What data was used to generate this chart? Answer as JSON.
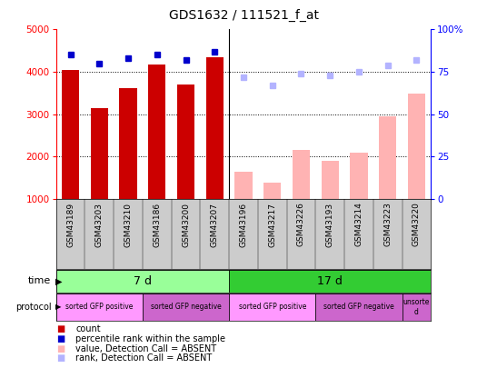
{
  "title": "GDS1632 / 111521_f_at",
  "samples": [
    "GSM43189",
    "GSM43203",
    "GSM43210",
    "GSM43186",
    "GSM43200",
    "GSM43207",
    "GSM43196",
    "GSM43217",
    "GSM43226",
    "GSM43193",
    "GSM43214",
    "GSM43223",
    "GSM43220"
  ],
  "count_values": [
    4050,
    3150,
    3620,
    4180,
    3700,
    4350,
    null,
    null,
    null,
    null,
    null,
    null,
    null
  ],
  "count_absent_values": [
    null,
    null,
    null,
    null,
    null,
    null,
    1640,
    1380,
    2150,
    1900,
    2080,
    2950,
    3480
  ],
  "rank_values": [
    85,
    80,
    83,
    85,
    82,
    87,
    null,
    null,
    null,
    null,
    null,
    null,
    null
  ],
  "rank_absent_values": [
    null,
    null,
    null,
    null,
    null,
    null,
    72,
    67,
    74,
    73,
    75,
    79,
    82
  ],
  "ylim_left": [
    1000,
    5000
  ],
  "ylim_right": [
    0,
    100
  ],
  "yticks_left": [
    1000,
    2000,
    3000,
    4000,
    5000
  ],
  "yticks_right": [
    0,
    25,
    50,
    75,
    100
  ],
  "bar_color_present": "#cc0000",
  "bar_color_absent": "#ffb3b3",
  "dot_color_present": "#0000cc",
  "dot_color_absent": "#b3b3ff",
  "time_7d_color": "#99ff99",
  "time_17d_color": "#33cc33",
  "proto_positive_color": "#ff99ff",
  "proto_negative_color": "#cc66cc",
  "proto_unsorted_color": "#cc66cc",
  "bg_color": "#ffffff",
  "grid_dotted_values": [
    2000,
    3000,
    4000
  ]
}
